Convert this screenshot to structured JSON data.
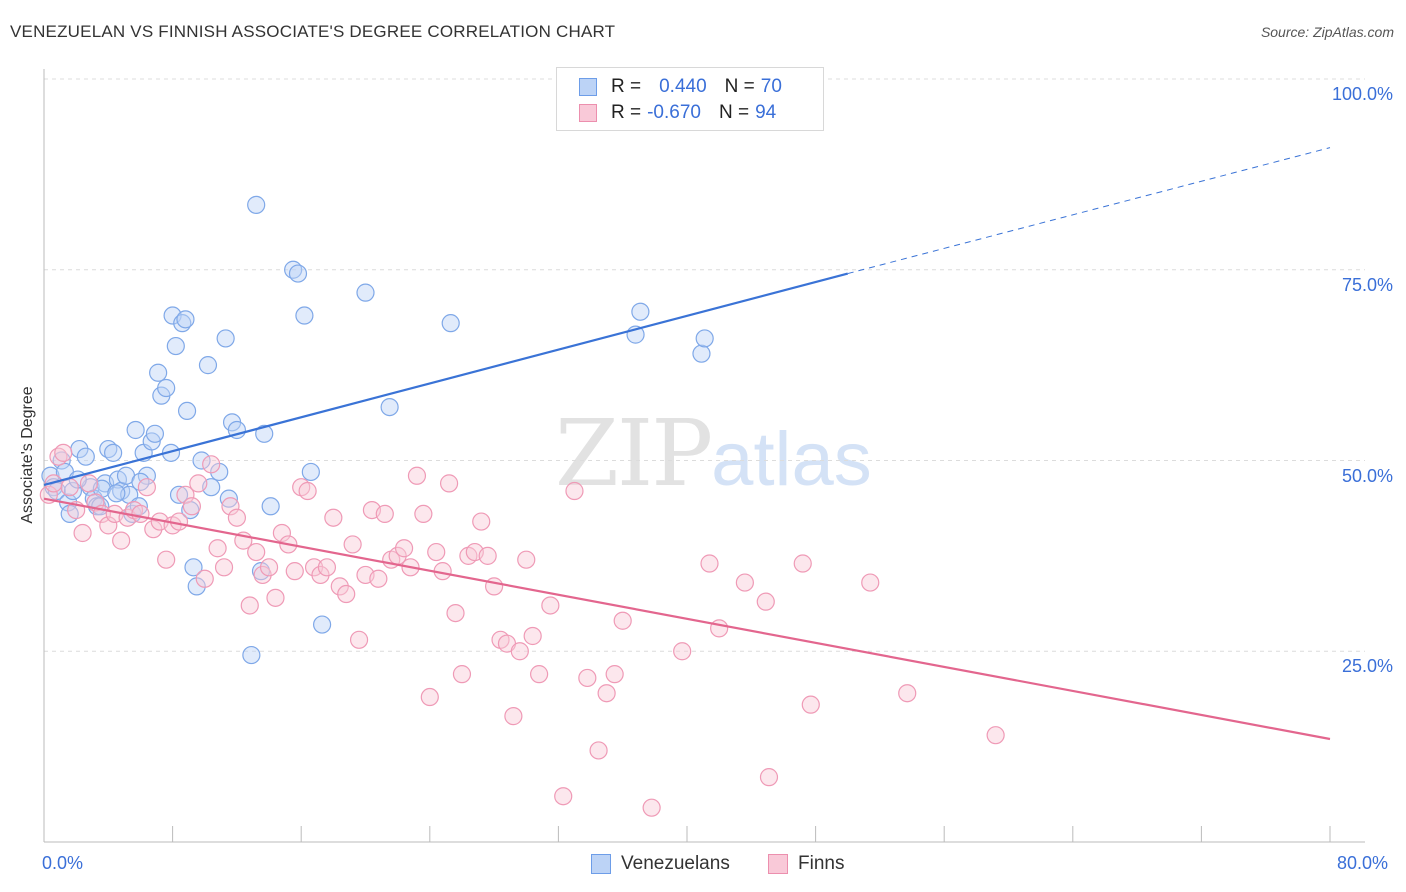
{
  "title": "VENEZUELAN VS FINNISH ASSOCIATE'S DEGREE CORRELATION CHART",
  "source": "Source: ZipAtlas.com",
  "watermark": {
    "zip": "ZIP",
    "atlas": "atlas"
  },
  "legend": {
    "rows": [
      {
        "r_label": "R =",
        "r_value": "0.440",
        "n_label": "N =",
        "n_value": "70",
        "color": "#6d9de8",
        "fill": "#bcd3f6"
      },
      {
        "r_label": "R =",
        "r_value": "-0.670",
        "n_label": "N =",
        "n_value": "94",
        "color": "#ec8fae",
        "fill": "#f9c9d8"
      }
    ]
  },
  "bottom_legend": [
    {
      "label": "Venezuelans",
      "color": "#6d9de8",
      "fill": "#bcd3f6"
    },
    {
      "label": "Finns",
      "color": "#ec8fae",
      "fill": "#f9c9d8"
    }
  ],
  "chart_data": {
    "type": "scatter",
    "xlabel": "",
    "ylabel": "Associate's Degree",
    "xlim": [
      0,
      80
    ],
    "ylim": [
      0,
      100
    ],
    "x_tick_labels": {
      "left": "0.0%",
      "right": "80.0%"
    },
    "y_ticks": [
      {
        "value": 100,
        "label": "100.0%"
      },
      {
        "value": 75,
        "label": "75.0%"
      },
      {
        "value": 50,
        "label": "50.0%"
      },
      {
        "value": 25,
        "label": "25.0%"
      }
    ],
    "x_minor_ticks": [
      0,
      8,
      16,
      24,
      32,
      40,
      48,
      56,
      64,
      72,
      80
    ],
    "series": [
      {
        "name": "Venezuelans",
        "color": "#3a73d6",
        "point_stroke": "#7fa8e8",
        "point_fill": "#bcd3f6",
        "trend": {
          "x0": 0,
          "y0": 46.8,
          "x1": 50,
          "y1": 74.5,
          "dash_x1": 80,
          "dash_y1": 91.0
        },
        "points": [
          [
            0.4,
            48.0
          ],
          [
            0.6,
            46.5
          ],
          [
            0.8,
            46.0
          ],
          [
            1.1,
            50.0
          ],
          [
            1.3,
            48.5
          ],
          [
            1.5,
            44.5
          ],
          [
            1.6,
            43.0
          ],
          [
            1.8,
            46.0
          ],
          [
            2.2,
            51.5
          ],
          [
            2.6,
            50.5
          ],
          [
            2.9,
            46.5
          ],
          [
            3.1,
            45.0
          ],
          [
            3.3,
            44.0
          ],
          [
            3.5,
            44.0
          ],
          [
            3.8,
            47.0
          ],
          [
            4.0,
            51.5
          ],
          [
            4.3,
            51.0
          ],
          [
            4.6,
            47.5
          ],
          [
            4.8,
            46.0
          ],
          [
            5.1,
            48.0
          ],
          [
            5.3,
            45.5
          ],
          [
            5.5,
            43.0
          ],
          [
            5.7,
            54.0
          ],
          [
            5.9,
            44.0
          ],
          [
            6.2,
            51.0
          ],
          [
            6.4,
            48.0
          ],
          [
            6.7,
            52.5
          ],
          [
            6.9,
            53.5
          ],
          [
            7.1,
            61.5
          ],
          [
            7.3,
            58.5
          ],
          [
            7.6,
            59.5
          ],
          [
            7.9,
            51.0
          ],
          [
            8.0,
            69.0
          ],
          [
            8.2,
            65.0
          ],
          [
            8.4,
            45.5
          ],
          [
            8.6,
            68.0
          ],
          [
            8.8,
            68.5
          ],
          [
            8.9,
            56.5
          ],
          [
            9.1,
            43.5
          ],
          [
            9.3,
            36.0
          ],
          [
            9.5,
            33.5
          ],
          [
            9.8,
            50.0
          ],
          [
            10.2,
            62.5
          ],
          [
            10.4,
            46.5
          ],
          [
            10.9,
            48.5
          ],
          [
            11.3,
            66.0
          ],
          [
            11.5,
            45.0
          ],
          [
            11.7,
            55.0
          ],
          [
            12.0,
            54.0
          ],
          [
            12.9,
            24.5
          ],
          [
            13.2,
            83.5
          ],
          [
            13.5,
            35.5
          ],
          [
            13.7,
            53.5
          ],
          [
            14.1,
            44.0
          ],
          [
            15.5,
            75.0
          ],
          [
            15.8,
            74.5
          ],
          [
            16.2,
            69.0
          ],
          [
            16.6,
            48.5
          ],
          [
            17.3,
            28.5
          ],
          [
            20.0,
            72.0
          ],
          [
            21.5,
            57.0
          ],
          [
            25.3,
            68.0
          ],
          [
            36.8,
            66.5
          ],
          [
            37.1,
            69.5
          ],
          [
            40.9,
            64.0
          ],
          [
            41.1,
            66.0
          ],
          [
            2.1,
            47.5
          ],
          [
            3.6,
            46.3
          ],
          [
            4.5,
            45.7
          ],
          [
            6.0,
            47.2
          ]
        ]
      },
      {
        "name": "Finns",
        "color": "#e3668e",
        "point_stroke": "#ef9ab6",
        "point_fill": "#f9c9d8",
        "trend": {
          "x0": 0,
          "y0": 45.0,
          "x1": 80,
          "y1": 13.5
        },
        "points": [
          [
            0.3,
            45.5
          ],
          [
            0.6,
            47.0
          ],
          [
            0.9,
            50.5
          ],
          [
            1.2,
            51.0
          ],
          [
            1.6,
            46.5
          ],
          [
            2.0,
            43.5
          ],
          [
            2.4,
            40.5
          ],
          [
            2.8,
            47.0
          ],
          [
            3.2,
            44.5
          ],
          [
            3.6,
            43.0
          ],
          [
            4.0,
            41.5
          ],
          [
            4.4,
            43.0
          ],
          [
            4.8,
            39.5
          ],
          [
            5.2,
            42.5
          ],
          [
            5.6,
            43.5
          ],
          [
            6.0,
            43.0
          ],
          [
            6.4,
            46.5
          ],
          [
            6.8,
            41.0
          ],
          [
            7.2,
            42.0
          ],
          [
            7.6,
            37.0
          ],
          [
            8.0,
            41.5
          ],
          [
            8.4,
            42.0
          ],
          [
            8.8,
            45.5
          ],
          [
            9.2,
            44.0
          ],
          [
            9.6,
            47.0
          ],
          [
            10.0,
            34.5
          ],
          [
            10.4,
            49.5
          ],
          [
            10.8,
            38.5
          ],
          [
            11.2,
            36.0
          ],
          [
            11.6,
            44.0
          ],
          [
            12.0,
            42.5
          ],
          [
            12.4,
            39.5
          ],
          [
            12.8,
            31.0
          ],
          [
            13.2,
            38.0
          ],
          [
            13.6,
            35.0
          ],
          [
            14.0,
            36.0
          ],
          [
            14.4,
            32.0
          ],
          [
            14.8,
            40.5
          ],
          [
            15.2,
            39.0
          ],
          [
            15.6,
            35.5
          ],
          [
            16.0,
            46.5
          ],
          [
            16.4,
            46.0
          ],
          [
            16.8,
            36.0
          ],
          [
            17.2,
            35.0
          ],
          [
            17.6,
            36.0
          ],
          [
            18.0,
            42.5
          ],
          [
            18.4,
            33.5
          ],
          [
            18.8,
            32.5
          ],
          [
            19.2,
            39.0
          ],
          [
            19.6,
            26.5
          ],
          [
            20.0,
            35.0
          ],
          [
            20.4,
            43.5
          ],
          [
            20.8,
            34.5
          ],
          [
            21.2,
            43.0
          ],
          [
            21.6,
            37.0
          ],
          [
            22.0,
            37.5
          ],
          [
            22.4,
            38.5
          ],
          [
            22.8,
            36.0
          ],
          [
            23.2,
            48.0
          ],
          [
            23.6,
            43.0
          ],
          [
            24.0,
            19.0
          ],
          [
            24.4,
            38.0
          ],
          [
            24.8,
            35.5
          ],
          [
            25.2,
            47.0
          ],
          [
            25.6,
            30.0
          ],
          [
            26.0,
            22.0
          ],
          [
            26.4,
            37.5
          ],
          [
            26.8,
            38.0
          ],
          [
            27.2,
            42.0
          ],
          [
            27.6,
            37.5
          ],
          [
            28.0,
            33.5
          ],
          [
            28.4,
            26.5
          ],
          [
            28.8,
            26.0
          ],
          [
            29.2,
            16.5
          ],
          [
            29.6,
            25.0
          ],
          [
            30.0,
            37.0
          ],
          [
            30.4,
            27.0
          ],
          [
            30.8,
            22.0
          ],
          [
            31.5,
            31.0
          ],
          [
            32.3,
            6.0
          ],
          [
            33.0,
            46.0
          ],
          [
            33.8,
            21.5
          ],
          [
            34.5,
            12.0
          ],
          [
            35.0,
            19.5
          ],
          [
            35.5,
            22.0
          ],
          [
            36.0,
            29.0
          ],
          [
            37.8,
            4.5
          ],
          [
            39.7,
            25.0
          ],
          [
            41.4,
            36.5
          ],
          [
            42.0,
            28.0
          ],
          [
            43.6,
            34.0
          ],
          [
            44.9,
            31.5
          ],
          [
            45.1,
            8.5
          ],
          [
            47.2,
            36.5
          ]
        ]
      }
    ]
  },
  "extra_finn_points": [
    [
      47.7,
      18.0
    ],
    [
      51.4,
      34.0
    ],
    [
      53.7,
      19.5
    ],
    [
      59.2,
      14.0
    ]
  ]
}
